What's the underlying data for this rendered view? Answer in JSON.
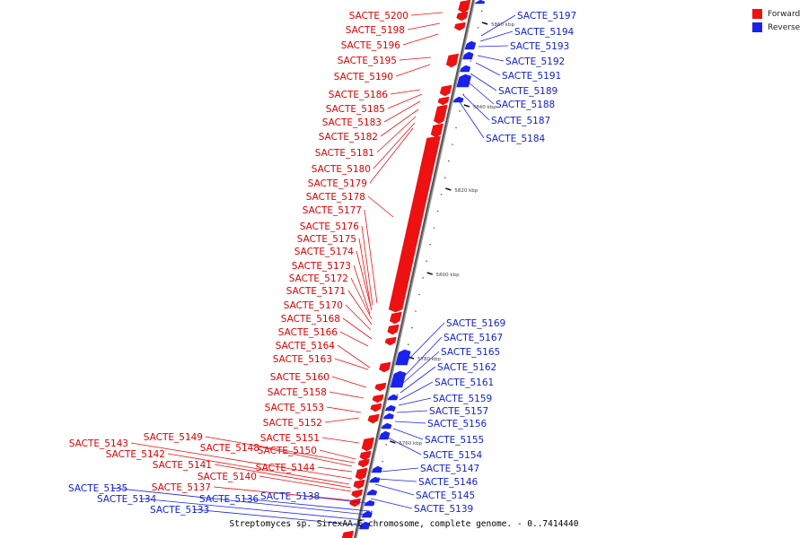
{
  "legend": {
    "forward_label": "Forward",
    "reverse_label": "Reverse",
    "forward_color": "#ee1111",
    "reverse_color": "#1a22ee"
  },
  "caption": "Streptomyces sp. SirexAA-E chromosome, complete genome. - 0..7414440",
  "ticks": [
    "5860 kbp",
    "5840 kbp",
    "5820 kbp",
    "5800 kbp",
    "5780 kbp",
    "5760 kbp"
  ],
  "forward_genes": [
    "SACTE_5200",
    "SACTE_5198",
    "SACTE_5196",
    "SACTE_5195",
    "SACTE_5190",
    "SACTE_5186",
    "SACTE_5185",
    "SACTE_5183",
    "SACTE_5182",
    "SACTE_5181",
    "SACTE_5180",
    "SACTE_5179",
    "SACTE_5178",
    "SACTE_5177",
    "SACTE_5176",
    "SACTE_5175",
    "SACTE_5174",
    "SACTE_5173",
    "SACTE_5172",
    "SACTE_5171",
    "SACTE_5170",
    "SACTE_5168",
    "SACTE_5166",
    "SACTE_5164",
    "SACTE_5163",
    "SACTE_5160",
    "SACTE_5158",
    "SACTE_5153",
    "SACTE_5152",
    "SACTE_5151",
    "SACTE_5150",
    "SACTE_5149",
    "SACTE_5148",
    "SACTE_5144",
    "SACTE_5143",
    "SACTE_5142",
    "SACTE_5141",
    "SACTE_5140",
    "SACTE_5137"
  ],
  "reverse_genes": [
    "SACTE_5197",
    "SACTE_5194",
    "SACTE_5193",
    "SACTE_5192",
    "SACTE_5191",
    "SACTE_5189",
    "SACTE_5188",
    "SACTE_5187",
    "SACTE_5184",
    "SACTE_5169",
    "SACTE_5167",
    "SACTE_5165",
    "SACTE_5162",
    "SACTE_5161",
    "SACTE_5159",
    "SACTE_5157",
    "SACTE_5156",
    "SACTE_5155",
    "SACTE_5154",
    "SACTE_5147",
    "SACTE_5146",
    "SACTE_5145",
    "SACTE_5139",
    "SACTE_5138",
    "SACTE_5136",
    "SACTE_5135",
    "SACTE_5134",
    "SACTE_5133"
  ]
}
